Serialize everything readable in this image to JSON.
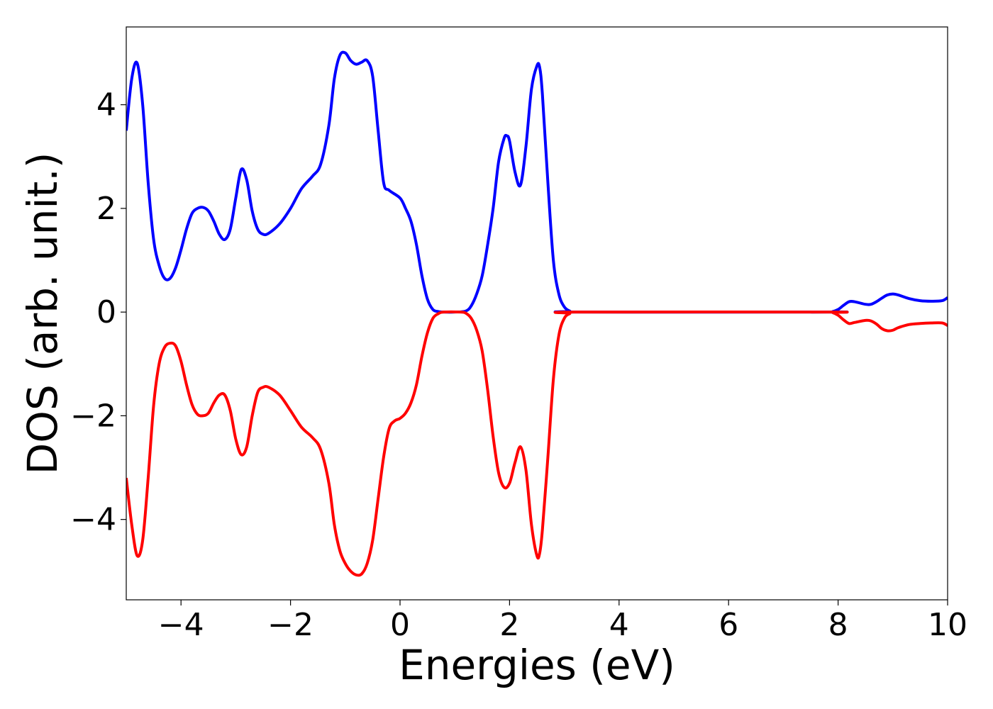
{
  "chart_data": {
    "type": "line",
    "xlabel": "Energies (eV)",
    "ylabel": "DOS (arb. unit.)",
    "xlim": [
      -5,
      10
    ],
    "ylim": [
      -5.55,
      5.5
    ],
    "x_ticks": [
      -4,
      -2,
      0,
      2,
      4,
      6,
      8,
      10
    ],
    "x_tick_labels": [
      "−4",
      "−2",
      "0",
      "2",
      "4",
      "6",
      "8",
      "10"
    ],
    "y_ticks": [
      -4,
      -2,
      0,
      2,
      4
    ],
    "y_tick_labels": [
      "−4",
      "−2",
      "0",
      "2",
      "4"
    ],
    "grid": false,
    "series": [
      {
        "color": "#0000ff",
        "points": [
          [
            -5.0,
            3.5
          ],
          [
            -4.9,
            4.5
          ],
          [
            -4.8,
            4.8
          ],
          [
            -4.7,
            4.0
          ],
          [
            -4.6,
            2.5
          ],
          [
            -4.5,
            1.4
          ],
          [
            -4.4,
            0.9
          ],
          [
            -4.3,
            0.65
          ],
          [
            -4.2,
            0.65
          ],
          [
            -4.1,
            0.85
          ],
          [
            -4.0,
            1.2
          ],
          [
            -3.9,
            1.6
          ],
          [
            -3.8,
            1.9
          ],
          [
            -3.7,
            2.0
          ],
          [
            -3.6,
            2.02
          ],
          [
            -3.5,
            1.95
          ],
          [
            -3.4,
            1.75
          ],
          [
            -3.3,
            1.5
          ],
          [
            -3.2,
            1.4
          ],
          [
            -3.1,
            1.6
          ],
          [
            -3.0,
            2.2
          ],
          [
            -2.9,
            2.75
          ],
          [
            -2.8,
            2.55
          ],
          [
            -2.7,
            1.95
          ],
          [
            -2.6,
            1.6
          ],
          [
            -2.5,
            1.5
          ],
          [
            -2.4,
            1.52
          ],
          [
            -2.2,
            1.7
          ],
          [
            -2.0,
            2.0
          ],
          [
            -1.8,
            2.38
          ],
          [
            -1.6,
            2.62
          ],
          [
            -1.45,
            2.85
          ],
          [
            -1.3,
            3.6
          ],
          [
            -1.2,
            4.5
          ],
          [
            -1.1,
            4.95
          ],
          [
            -1.0,
            5.0
          ],
          [
            -0.9,
            4.85
          ],
          [
            -0.8,
            4.78
          ],
          [
            -0.7,
            4.82
          ],
          [
            -0.6,
            4.85
          ],
          [
            -0.5,
            4.55
          ],
          [
            -0.4,
            3.5
          ],
          [
            -0.3,
            2.5
          ],
          [
            -0.2,
            2.35
          ],
          [
            0.0,
            2.2
          ],
          [
            0.1,
            2.0
          ],
          [
            0.2,
            1.75
          ],
          [
            0.3,
            1.3
          ],
          [
            0.4,
            0.7
          ],
          [
            0.5,
            0.25
          ],
          [
            0.6,
            0.05
          ],
          [
            0.7,
            0.01
          ],
          [
            0.8,
            0.0
          ],
          [
            1.0,
            0.0
          ],
          [
            1.2,
            0.02
          ],
          [
            1.3,
            0.12
          ],
          [
            1.4,
            0.35
          ],
          [
            1.5,
            0.7
          ],
          [
            1.6,
            1.3
          ],
          [
            1.7,
            2.0
          ],
          [
            1.8,
            2.9
          ],
          [
            1.9,
            3.35
          ],
          [
            1.95,
            3.4
          ],
          [
            2.0,
            3.3
          ],
          [
            2.1,
            2.7
          ],
          [
            2.2,
            2.45
          ],
          [
            2.3,
            3.2
          ],
          [
            2.4,
            4.3
          ],
          [
            2.5,
            4.75
          ],
          [
            2.55,
            4.72
          ],
          [
            2.6,
            4.2
          ],
          [
            2.7,
            2.5
          ],
          [
            2.8,
            1.0
          ],
          [
            2.9,
            0.35
          ],
          [
            3.0,
            0.1
          ],
          [
            3.1,
            0.02
          ],
          [
            3.2,
            0.0
          ],
          [
            7.8,
            0.0
          ],
          [
            7.9,
            0.01
          ],
          [
            8.0,
            0.05
          ],
          [
            8.1,
            0.13
          ],
          [
            8.2,
            0.2
          ],
          [
            8.3,
            0.2
          ],
          [
            8.5,
            0.15
          ],
          [
            8.6,
            0.15
          ],
          [
            8.7,
            0.2
          ],
          [
            8.8,
            0.27
          ],
          [
            8.9,
            0.33
          ],
          [
            9.0,
            0.35
          ],
          [
            9.1,
            0.33
          ],
          [
            9.3,
            0.26
          ],
          [
            9.5,
            0.22
          ],
          [
            9.7,
            0.21
          ],
          [
            9.9,
            0.22
          ],
          [
            10.0,
            0.28
          ]
        ]
      },
      {
        "color": "#ff0000",
        "points": [
          [
            -5.0,
            -3.2
          ],
          [
            -4.9,
            -4.1
          ],
          [
            -4.8,
            -4.7
          ],
          [
            -4.7,
            -4.4
          ],
          [
            -4.6,
            -3.2
          ],
          [
            -4.5,
            -1.8
          ],
          [
            -4.4,
            -1.0
          ],
          [
            -4.3,
            -0.68
          ],
          [
            -4.2,
            -0.6
          ],
          [
            -4.1,
            -0.65
          ],
          [
            -4.0,
            -0.95
          ],
          [
            -3.9,
            -1.4
          ],
          [
            -3.8,
            -1.78
          ],
          [
            -3.7,
            -1.97
          ],
          [
            -3.6,
            -2.0
          ],
          [
            -3.5,
            -1.95
          ],
          [
            -3.4,
            -1.75
          ],
          [
            -3.3,
            -1.6
          ],
          [
            -3.2,
            -1.6
          ],
          [
            -3.1,
            -1.9
          ],
          [
            -3.0,
            -2.45
          ],
          [
            -2.9,
            -2.75
          ],
          [
            -2.8,
            -2.6
          ],
          [
            -2.7,
            -2.0
          ],
          [
            -2.6,
            -1.55
          ],
          [
            -2.5,
            -1.45
          ],
          [
            -2.4,
            -1.45
          ],
          [
            -2.2,
            -1.6
          ],
          [
            -2.0,
            -1.9
          ],
          [
            -1.8,
            -2.22
          ],
          [
            -1.6,
            -2.42
          ],
          [
            -1.45,
            -2.65
          ],
          [
            -1.3,
            -3.3
          ],
          [
            -1.2,
            -4.1
          ],
          [
            -1.1,
            -4.6
          ],
          [
            -1.0,
            -4.85
          ],
          [
            -0.9,
            -5.0
          ],
          [
            -0.8,
            -5.07
          ],
          [
            -0.7,
            -5.05
          ],
          [
            -0.6,
            -4.85
          ],
          [
            -0.5,
            -4.4
          ],
          [
            -0.4,
            -3.6
          ],
          [
            -0.3,
            -2.8
          ],
          [
            -0.2,
            -2.25
          ],
          [
            -0.1,
            -2.1
          ],
          [
            0.0,
            -2.05
          ],
          [
            0.1,
            -1.95
          ],
          [
            0.2,
            -1.75
          ],
          [
            0.3,
            -1.4
          ],
          [
            0.4,
            -0.85
          ],
          [
            0.5,
            -0.4
          ],
          [
            0.6,
            -0.12
          ],
          [
            0.7,
            -0.03
          ],
          [
            0.8,
            0.0
          ],
          [
            1.1,
            0.0
          ],
          [
            1.2,
            -0.02
          ],
          [
            1.3,
            -0.12
          ],
          [
            1.4,
            -0.35
          ],
          [
            1.5,
            -0.75
          ],
          [
            1.6,
            -1.5
          ],
          [
            1.7,
            -2.4
          ],
          [
            1.8,
            -3.1
          ],
          [
            1.9,
            -3.38
          ],
          [
            2.0,
            -3.3
          ],
          [
            2.1,
            -2.9
          ],
          [
            2.2,
            -2.6
          ],
          [
            2.3,
            -3.05
          ],
          [
            2.4,
            -4.1
          ],
          [
            2.5,
            -4.7
          ],
          [
            2.55,
            -4.65
          ],
          [
            2.6,
            -4.2
          ],
          [
            2.7,
            -2.8
          ],
          [
            2.8,
            -1.3
          ],
          [
            2.9,
            -0.45
          ],
          [
            3.0,
            -0.12
          ],
          [
            3.1,
            -0.03
          ],
          [
            3.2,
            0.0
          ],
          [
            7.8,
            0.0
          ],
          [
            7.9,
            -0.01
          ],
          [
            8.0,
            -0.06
          ],
          [
            8.1,
            -0.15
          ],
          [
            8.2,
            -0.22
          ],
          [
            8.3,
            -0.2
          ],
          [
            8.5,
            -0.16
          ],
          [
            8.6,
            -0.17
          ],
          [
            8.7,
            -0.23
          ],
          [
            8.8,
            -0.32
          ],
          [
            8.9,
            -0.36
          ],
          [
            9.0,
            -0.35
          ],
          [
            9.1,
            -0.3
          ],
          [
            9.3,
            -0.24
          ],
          [
            9.5,
            -0.22
          ],
          [
            9.7,
            -0.21
          ],
          [
            9.9,
            -0.21
          ],
          [
            10.0,
            -0.26
          ]
        ]
      }
    ]
  }
}
